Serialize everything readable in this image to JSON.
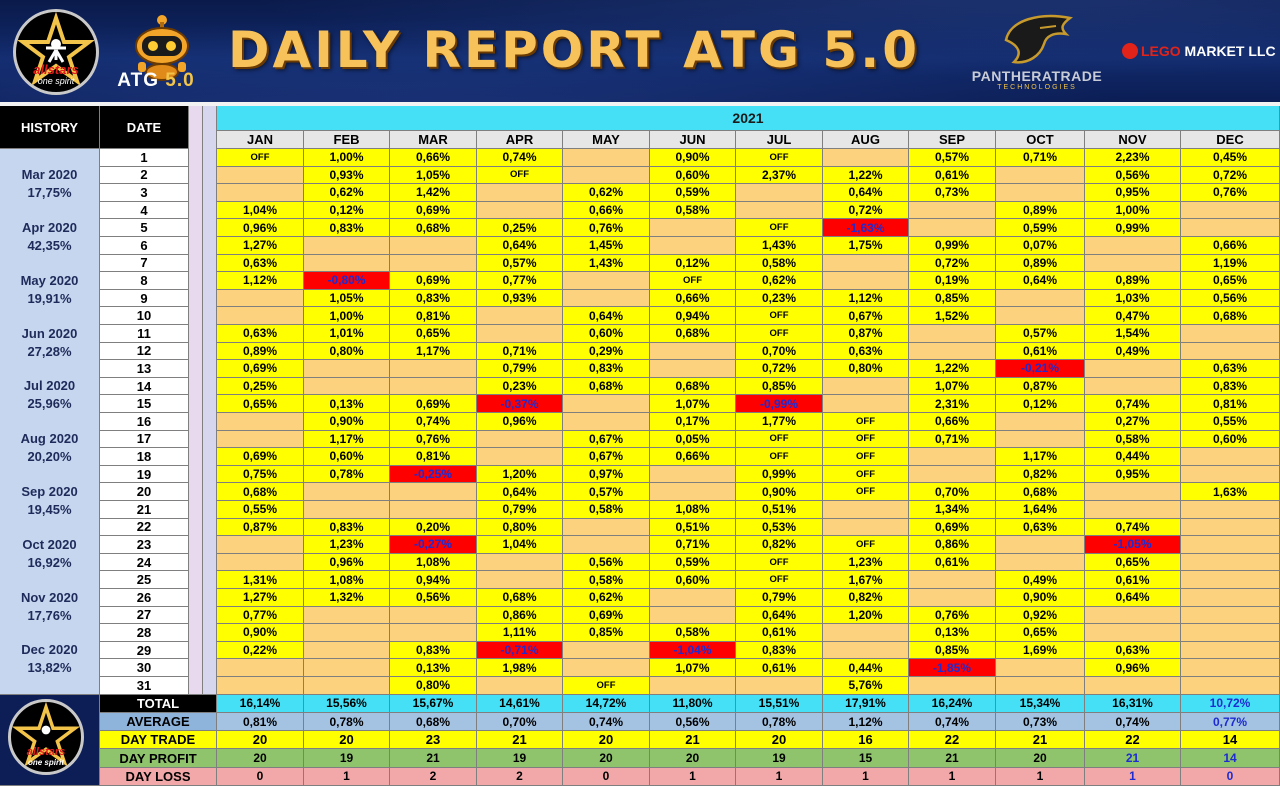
{
  "header": {
    "title": "DAILY REPORT ATG 5.0",
    "allstars_logo": {
      "name": "allstars",
      "tagline": "one spirit"
    },
    "atg_logo": {
      "prefix": "ATG",
      "version": "5.0"
    },
    "panthera": {
      "name": "PANTHERATRADE",
      "sub": "TECHNOLOGIES"
    },
    "lego": {
      "name_red": "LEGO",
      "name_white": " MARKET LLC"
    }
  },
  "table": {
    "history_label": "HISTORY",
    "date_label": "DATE",
    "year": "2021",
    "months": [
      "JAN",
      "FEB",
      "MAR",
      "APR",
      "MAY",
      "JUN",
      "JUL",
      "AUG",
      "SEP",
      "OCT",
      "NOV",
      "DEC"
    ],
    "history": [
      {
        "month": "Mar 2020",
        "value": "17,75%"
      },
      {
        "month": "Apr 2020",
        "value": "42,35%"
      },
      {
        "month": "May 2020",
        "value": "19,91%"
      },
      {
        "month": "Jun 2020",
        "value": "27,28%"
      },
      {
        "month": "Jul 2020",
        "value": "25,96%"
      },
      {
        "month": "Aug 2020",
        "value": "20,20%"
      },
      {
        "month": "Sep 2020",
        "value": "19,45%"
      },
      {
        "month": "Oct 2020",
        "value": "16,92%"
      },
      {
        "month": "Nov 2020",
        "value": "17,76%"
      },
      {
        "month": "Dec 2020",
        "value": "13,82%"
      }
    ],
    "rows": [
      [
        "OFF",
        "1,00%",
        "0,66%",
        "0,74%",
        "",
        "0,90%",
        "OFF",
        "",
        "0,57%",
        "0,71%",
        "2,23%",
        "0,45%"
      ],
      [
        "",
        "0,93%",
        "1,05%",
        "OFF",
        "",
        "0,60%",
        "2,37%",
        "1,22%",
        "0,61%",
        "",
        "0,56%",
        "0,72%"
      ],
      [
        "",
        "0,62%",
        "1,42%",
        "",
        "0,62%",
        "0,59%",
        "",
        "0,64%",
        "0,73%",
        "",
        "0,95%",
        "0,76%"
      ],
      [
        "1,04%",
        "0,12%",
        "0,69%",
        "",
        "0,66%",
        "0,58%",
        "",
        "0,72%",
        "",
        "0,89%",
        "1,00%",
        ""
      ],
      [
        "0,96%",
        "0,83%",
        "0,68%",
        "0,25%",
        "0,76%",
        "",
        "OFF",
        "-1,63%",
        "",
        "0,59%",
        "0,99%",
        ""
      ],
      [
        "1,27%",
        "",
        "",
        "0,64%",
        "1,45%",
        "",
        "1,43%",
        "1,75%",
        "0,99%",
        "0,07%",
        "",
        "0,66%"
      ],
      [
        "0,63%",
        "",
        "",
        "0,57%",
        "1,43%",
        "0,12%",
        "0,58%",
        "",
        "0,72%",
        "0,89%",
        "",
        "1,19%"
      ],
      [
        "1,12%",
        "-0,80%",
        "0,69%",
        "0,77%",
        "",
        "OFF",
        "0,62%",
        "",
        "0,19%",
        "0,64%",
        "0,89%",
        "0,65%"
      ],
      [
        "",
        "1,05%",
        "0,83%",
        "0,93%",
        "",
        "0,66%",
        "0,23%",
        "1,12%",
        "0,85%",
        "",
        "1,03%",
        "0,56%"
      ],
      [
        "",
        "1,00%",
        "0,81%",
        "",
        "0,64%",
        "0,94%",
        "OFF",
        "0,67%",
        "1,52%",
        "",
        "0,47%",
        "0,68%"
      ],
      [
        "0,63%",
        "1,01%",
        "0,65%",
        "",
        "0,60%",
        "0,68%",
        "OFF",
        "0,87%",
        "",
        "0,57%",
        "1,54%",
        ""
      ],
      [
        "0,89%",
        "0,80%",
        "1,17%",
        "0,71%",
        "0,29%",
        "",
        "0,70%",
        "0,63%",
        "",
        "0,61%",
        "0,49%",
        ""
      ],
      [
        "0,69%",
        "",
        "",
        "0,79%",
        "0,83%",
        "",
        "0,72%",
        "0,80%",
        "1,22%",
        "-0,21%",
        "",
        "0,63%"
      ],
      [
        "0,25%",
        "",
        "",
        "0,23%",
        "0,68%",
        "0,68%",
        "0,85%",
        "",
        "1,07%",
        "0,87%",
        "",
        "0,83%"
      ],
      [
        "0,65%",
        "0,13%",
        "0,69%",
        "-0,37%",
        "",
        "1,07%",
        "-0,99%",
        "",
        "2,31%",
        "0,12%",
        "0,74%",
        "0,81%"
      ],
      [
        "",
        "0,90%",
        "0,74%",
        "0,96%",
        "",
        "0,17%",
        "1,77%",
        "OFF",
        "0,66%",
        "",
        "0,27%",
        "0,55%"
      ],
      [
        "",
        "1,17%",
        "0,76%",
        "",
        "0,67%",
        "0,05%",
        "OFF",
        "OFF",
        "0,71%",
        "",
        "0,58%",
        "0,60%"
      ],
      [
        "0,69%",
        "0,60%",
        "0,81%",
        "",
        "0,67%",
        "0,66%",
        "OFF",
        "OFF",
        "",
        "1,17%",
        "0,44%",
        ""
      ],
      [
        "0,75%",
        "0,78%",
        "-0,25%",
        "1,20%",
        "0,97%",
        "",
        "0,99%",
        "OFF",
        "",
        "0,82%",
        "0,95%",
        ""
      ],
      [
        "0,68%",
        "",
        "",
        "0,64%",
        "0,57%",
        "",
        "0,90%",
        "OFF",
        "0,70%",
        "0,68%",
        "",
        "1,63%"
      ],
      [
        "0,55%",
        "",
        "",
        "0,79%",
        "0,58%",
        "1,08%",
        "0,51%",
        "",
        "1,34%",
        "1,64%",
        "",
        ""
      ],
      [
        "0,87%",
        "0,83%",
        "0,20%",
        "0,80%",
        "",
        "0,51%",
        "0,53%",
        "",
        "0,69%",
        "0,63%",
        "0,74%",
        ""
      ],
      [
        "",
        "1,23%",
        "-0,27%",
        "1,04%",
        "",
        "0,71%",
        "0,82%",
        "OFF",
        "0,86%",
        "",
        "-1,05%",
        ""
      ],
      [
        "",
        "0,96%",
        "1,08%",
        "",
        "0,56%",
        "0,59%",
        "OFF",
        "1,23%",
        "0,61%",
        "",
        "0,65%",
        ""
      ],
      [
        "1,31%",
        "1,08%",
        "0,94%",
        "",
        "0,58%",
        "0,60%",
        "OFF",
        "1,67%",
        "",
        "0,49%",
        "0,61%",
        ""
      ],
      [
        "1,27%",
        "1,32%",
        "0,56%",
        "0,68%",
        "0,62%",
        "",
        "0,79%",
        "0,82%",
        "",
        "0,90%",
        "0,64%",
        ""
      ],
      [
        "0,77%",
        "",
        "",
        "0,86%",
        "0,69%",
        "",
        "0,64%",
        "1,20%",
        "0,76%",
        "0,92%",
        "",
        ""
      ],
      [
        "0,90%",
        "",
        "",
        "1,11%",
        "0,85%",
        "0,58%",
        "0,61%",
        "",
        "0,13%",
        "0,65%",
        "",
        ""
      ],
      [
        "0,22%",
        "",
        "0,83%",
        "-0,71%",
        "",
        "-1,04%",
        "0,83%",
        "",
        "0,85%",
        "1,69%",
        "0,63%",
        ""
      ],
      [
        "",
        "",
        "0,13%",
        "1,98%",
        "",
        "1,07%",
        "0,61%",
        "0,44%",
        "-1,85%",
        "",
        "0,96%",
        ""
      ],
      [
        "",
        "",
        "0,80%",
        "",
        "OFF",
        "",
        "",
        "5,76%",
        "",
        "",
        "",
        ""
      ]
    ],
    "summary": {
      "total": {
        "label": "TOTAL",
        "values": [
          "16,14%",
          "15,56%",
          "15,67%",
          "14,61%",
          "14,72%",
          "11,80%",
          "15,51%",
          "17,91%",
          "16,24%",
          "15,34%",
          "16,31%",
          "10,72%"
        ]
      },
      "average": {
        "label": "AVERAGE",
        "values": [
          "0,81%",
          "0,78%",
          "0,68%",
          "0,70%",
          "0,74%",
          "0,56%",
          "0,78%",
          "1,12%",
          "0,74%",
          "0,73%",
          "0,74%",
          "0,77%"
        ]
      },
      "day_trade": {
        "label": "DAY TRADE",
        "values": [
          "20",
          "20",
          "23",
          "21",
          "20",
          "21",
          "20",
          "16",
          "22",
          "21",
          "22",
          "14"
        ]
      },
      "day_profit": {
        "label": "DAY PROFIT",
        "values": [
          "20",
          "19",
          "21",
          "19",
          "20",
          "20",
          "19",
          "15",
          "21",
          "20",
          "21",
          "14"
        ]
      },
      "day_loss": {
        "label": "DAY LOSS",
        "values": [
          "0",
          "1",
          "2",
          "2",
          "0",
          "1",
          "1",
          "1",
          "1",
          "1",
          "1",
          "0"
        ]
      }
    },
    "colors": {
      "profit_cell": "#ffff00",
      "empty_cell": "#fcd27e",
      "loss_cell": "#ff0000",
      "year_header": "#45e0f5"
    }
  }
}
